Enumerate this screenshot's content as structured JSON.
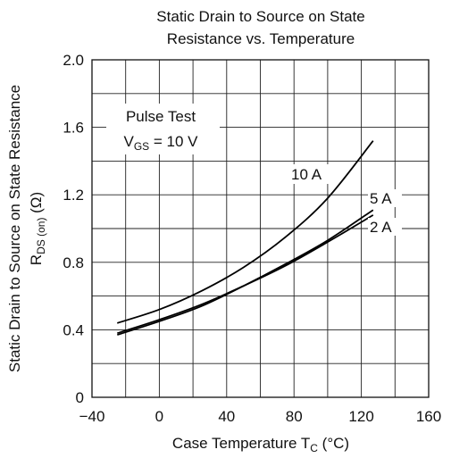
{
  "chart_data": {
    "type": "line",
    "title_lines": [
      "Static Drain to Source on State",
      "Resistance vs. Temperature"
    ],
    "xlabel": {
      "text": "Case Temperature  T",
      "sub": "C",
      "unit": "  (°C)"
    },
    "ylabel": {
      "line1": "Static Drain to Source on State Resistance",
      "line2_main": "R",
      "line2_sub": "DS (on)",
      "line2_unit": "  (Ω)"
    },
    "xlim": [
      -40,
      160
    ],
    "ylim": [
      0,
      2.0
    ],
    "x_ticks": [
      -40,
      0,
      40,
      80,
      120,
      160
    ],
    "x_tick_labels": [
      "−40",
      "0",
      "40",
      "80",
      "120",
      "160"
    ],
    "y_ticks": [
      0,
      0.4,
      0.8,
      1.2,
      1.6,
      2.0
    ],
    "y_tick_labels": [
      "0",
      "0.4",
      "0.8",
      "1.2",
      "1.6",
      "2.0"
    ],
    "grid_x_step": 20,
    "grid_y_step": 0.2,
    "grid": true,
    "annotation": {
      "line1": "Pulse Test",
      "line2_main": "V",
      "line2_sub": "GS",
      "line2_rest": " = 10 V"
    },
    "series": [
      {
        "name": "10 A",
        "x": [
          -25,
          0,
          25,
          50,
          75,
          100,
          127
        ],
        "y": [
          0.44,
          0.52,
          0.63,
          0.77,
          0.95,
          1.18,
          1.52
        ]
      },
      {
        "name": "5 A",
        "x": [
          -25,
          0,
          25,
          50,
          75,
          100,
          127
        ],
        "y": [
          0.37,
          0.45,
          0.54,
          0.66,
          0.79,
          0.93,
          1.11
        ]
      },
      {
        "name": "2 A",
        "x": [
          -25,
          0,
          25,
          50,
          75,
          100,
          127
        ],
        "y": [
          0.38,
          0.46,
          0.55,
          0.66,
          0.78,
          0.92,
          1.08
        ]
      }
    ]
  }
}
